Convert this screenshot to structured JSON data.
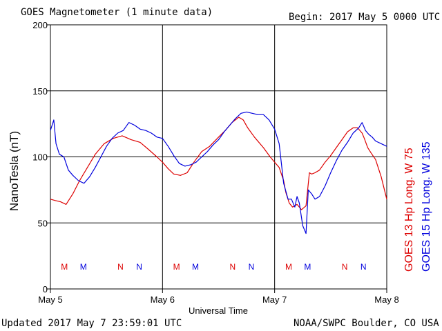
{
  "header": {
    "title": "GOES Magnetometer (1 minute data)",
    "begin": "Begin:  2017 May 5 0000 UTC"
  },
  "footer": {
    "updated": "Updated 2017 May  7 23:59:01 UTC",
    "source": "NOAA/SWPC Boulder, CO USA"
  },
  "legend": {
    "goes13": "GOES 13 Hp  Long. W 75",
    "goes15": "GOES 15 Hp  Long. W 135"
  },
  "colors": {
    "goes13": "#dd0000",
    "goes15": "#0000dd",
    "grid": "#000000"
  },
  "chart_data": {
    "type": "line",
    "title": "GOES Magnetometer (1 minute data)",
    "xlabel": "Universal Time",
    "ylabel": "NanoTesla (nT)",
    "x_range_days": [
      0,
      3
    ],
    "x_ticks": [
      {
        "x": 0,
        "label": "May 5"
      },
      {
        "x": 1,
        "label": "May 6"
      },
      {
        "x": 2,
        "label": "May 7"
      },
      {
        "x": 3,
        "label": "May 8"
      }
    ],
    "ylim": [
      0,
      200
    ],
    "y_ticks": [
      0,
      50,
      100,
      150,
      200
    ],
    "grid": true,
    "series": [
      {
        "name": "GOES 13 Hp  Long. W 75",
        "color": "#dd0000",
        "x": [
          0.0,
          0.04,
          0.09,
          0.14,
          0.2,
          0.26,
          0.33,
          0.4,
          0.48,
          0.56,
          0.64,
          0.72,
          0.8,
          0.87,
          0.95,
          1.0,
          1.05,
          1.1,
          1.16,
          1.22,
          1.28,
          1.35,
          1.42,
          1.5,
          1.56,
          1.62,
          1.68,
          1.72,
          1.76,
          1.82,
          1.9,
          1.96,
          2.0,
          2.04,
          2.08,
          2.1,
          2.13,
          2.16,
          2.2,
          2.24,
          2.28,
          2.31,
          2.33,
          2.36,
          2.4,
          2.45,
          2.5,
          2.55,
          2.6,
          2.65,
          2.7,
          2.74,
          2.78,
          2.8,
          2.83,
          2.86,
          2.9,
          2.95,
          3.0
        ],
        "y": [
          68,
          67,
          66,
          64,
          72,
          82,
          92,
          102,
          110,
          114,
          116,
          113,
          111,
          106,
          100,
          96,
          91,
          87,
          86,
          88,
          96,
          104,
          108,
          115,
          120,
          126,
          130,
          128,
          122,
          115,
          107,
          100,
          96,
          92,
          82,
          73,
          65,
          62,
          64,
          60,
          63,
          88,
          87,
          88,
          90,
          96,
          101,
          107,
          113,
          119,
          122,
          122,
          118,
          114,
          107,
          103,
          98,
          85,
          68
        ]
      },
      {
        "name": "GOES 15 Hp  Long. W 135",
        "color": "#0000dd",
        "x": [
          0.0,
          0.03,
          0.05,
          0.08,
          0.12,
          0.16,
          0.2,
          0.25,
          0.3,
          0.35,
          0.4,
          0.45,
          0.5,
          0.55,
          0.6,
          0.65,
          0.7,
          0.75,
          0.8,
          0.85,
          0.9,
          0.95,
          1.0,
          1.05,
          1.1,
          1.15,
          1.2,
          1.25,
          1.3,
          1.35,
          1.4,
          1.45,
          1.5,
          1.55,
          1.6,
          1.65,
          1.7,
          1.75,
          1.8,
          1.85,
          1.9,
          1.95,
          2.0,
          2.04,
          2.08,
          2.12,
          2.15,
          2.18,
          2.2,
          2.22,
          2.25,
          2.28,
          2.3,
          2.33,
          2.36,
          2.4,
          2.45,
          2.5,
          2.55,
          2.6,
          2.65,
          2.7,
          2.75,
          2.78,
          2.81,
          2.84,
          2.87,
          2.9,
          2.95,
          3.0
        ],
        "y": [
          120,
          128,
          110,
          102,
          100,
          90,
          86,
          82,
          80,
          85,
          92,
          100,
          108,
          114,
          118,
          120,
          126,
          124,
          121,
          120,
          118,
          115,
          114,
          108,
          101,
          95,
          93,
          94,
          96,
          100,
          104,
          109,
          113,
          119,
          124,
          129,
          133,
          134,
          133,
          132,
          132,
          128,
          121,
          110,
          80,
          68,
          68,
          62,
          70,
          65,
          48,
          42,
          75,
          72,
          68,
          70,
          78,
          88,
          97,
          105,
          111,
          118,
          122,
          126,
          120,
          117,
          115,
          112,
          110,
          108
        ]
      }
    ],
    "markers": [
      {
        "label": "M",
        "x": 0.125,
        "series": "GOES 13 Hp  Long. W 75"
      },
      {
        "label": "M",
        "x": 0.294,
        "series": "GOES 15 Hp  Long. W 135"
      },
      {
        "label": "N",
        "x": 0.625,
        "series": "GOES 13 Hp  Long. W 75"
      },
      {
        "label": "N",
        "x": 0.792,
        "series": "GOES 15 Hp  Long. W 135"
      },
      {
        "label": "M",
        "x": 1.125,
        "series": "GOES 13 Hp  Long. W 75"
      },
      {
        "label": "M",
        "x": 1.294,
        "series": "GOES 15 Hp  Long. W 135"
      },
      {
        "label": "N",
        "x": 1.625,
        "series": "GOES 13 Hp  Long. W 75"
      },
      {
        "label": "N",
        "x": 1.792,
        "series": "GOES 15 Hp  Long. W 135"
      },
      {
        "label": "M",
        "x": 2.125,
        "series": "GOES 13 Hp  Long. W 75"
      },
      {
        "label": "M",
        "x": 2.294,
        "series": "GOES 15 Hp  Long. W 135"
      },
      {
        "label": "N",
        "x": 2.625,
        "series": "GOES 13 Hp  Long. W 75"
      },
      {
        "label": "N",
        "x": 2.792,
        "series": "GOES 15 Hp  Long. W 135"
      }
    ]
  }
}
